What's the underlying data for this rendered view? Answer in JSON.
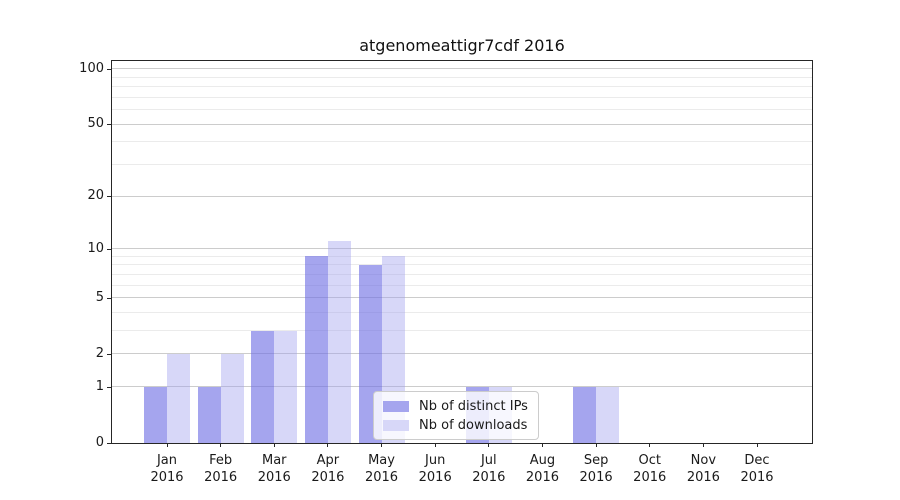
{
  "chart_data": {
    "type": "bar",
    "title": "atgenomeattigr7cdf 2016",
    "year": "2016",
    "months": [
      "Jan",
      "Feb",
      "Mar",
      "Apr",
      "May",
      "Jun",
      "Jul",
      "Aug",
      "Sep",
      "Oct",
      "Nov",
      "Dec"
    ],
    "series": [
      {
        "name": "Nb of distinct IPs",
        "color": "#a5a5ee",
        "bar_fill": "rgba(110,110,228,0.62)",
        "values": [
          1,
          1,
          3,
          9,
          8,
          0,
          1,
          0,
          1,
          0,
          0,
          0
        ]
      },
      {
        "name": "Nb of downloads",
        "color": "#d7d7f8",
        "bar_fill": "rgba(160,160,238,0.42)",
        "values": [
          2,
          2,
          3,
          11,
          9,
          0,
          1,
          0,
          1,
          0,
          0,
          0
        ]
      }
    ],
    "y_scale": "log1p",
    "ylim": [
      0,
      110
    ],
    "y_major_ticks": [
      0,
      1,
      2,
      5,
      10,
      20,
      50,
      100
    ],
    "y_minor_gridlines": [
      3,
      4,
      6,
      7,
      8,
      9,
      30,
      40,
      60,
      70,
      80,
      90
    ],
    "grid": {
      "major_color": "#cccccc",
      "minor_color": "#ebebeb"
    },
    "legend_position": "lower center-left inside plot",
    "axis_color": "#262626",
    "text_color": "#1a1a1a"
  }
}
